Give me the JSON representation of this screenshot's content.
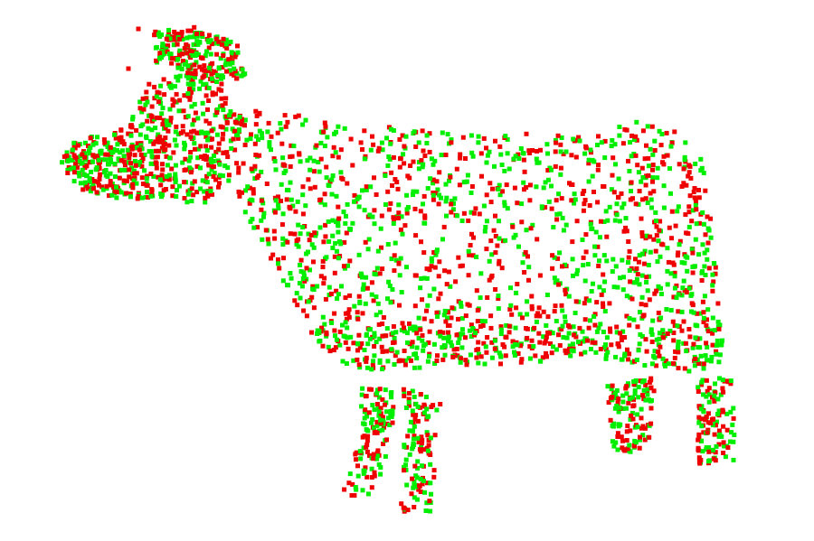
{
  "scene": {
    "subject": "cow",
    "background_color": "#ffffff",
    "point_colors": [
      "#00ee00",
      "#ee0000"
    ]
  }
}
